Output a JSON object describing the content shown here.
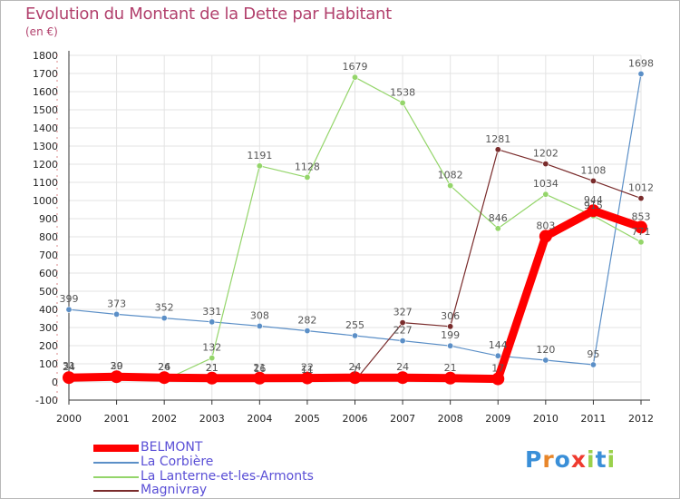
{
  "title": "Evolution du Montant de la Dette par Habitant",
  "subtitle": "(en €)",
  "logo_text": "Proxiti",
  "colors": {
    "title": "#b2416d",
    "legend_text": "#5a4fd6",
    "grid": "#e3e3e3",
    "axis": "#333333",
    "tick_text": "#222222",
    "value_label": "#555555"
  },
  "chart_data": {
    "type": "line",
    "x": [
      "2000",
      "2001",
      "2002",
      "2003",
      "2004",
      "2005",
      "2006",
      "2007",
      "2008",
      "2009",
      "2010",
      "2011",
      "2012"
    ],
    "ylim": [
      -100,
      1800
    ],
    "yticks": [
      -100,
      0,
      100,
      200,
      300,
      400,
      500,
      600,
      700,
      800,
      900,
      1000,
      1100,
      1200,
      1300,
      1400,
      1500,
      1600,
      1700,
      1800
    ],
    "grid": true,
    "legend_position": "bottom-left",
    "series": [
      {
        "name": "La Corbière",
        "color": "#5b8fc7",
        "values": [
          399,
          373,
          352,
          331,
          308,
          282,
          255,
          227,
          199,
          144,
          120,
          95,
          1698
        ],
        "labels": [
          "399",
          "373",
          "352",
          "331",
          "308",
          "282",
          "255",
          "227",
          "199",
          "144",
          "120",
          "95",
          "1698"
        ]
      },
      {
        "name": "La Lanterne-et-les-Armonts",
        "color": "#94d56a",
        "values": [
          10,
          10,
          10,
          132,
          1191,
          1128,
          1679,
          1538,
          1082,
          846,
          1034,
          915,
          771
        ],
        "labels": [
          "",
          "",
          "",
          "132",
          "1191",
          "1128",
          "1679",
          "1538",
          "1082",
          "846",
          "1034",
          "915",
          "771"
        ]
      },
      {
        "name": "Magnivray",
        "color": "#7a2c2c",
        "values": [
          31,
          30,
          26,
          21,
          16,
          11,
          7,
          327,
          306,
          1281,
          1202,
          1108,
          1012
        ],
        "labels": [
          "31",
          "30",
          "26",
          "21",
          "16",
          "11",
          "7",
          "327",
          "306",
          "1281",
          "1202",
          "1108",
          "1012"
        ]
      },
      {
        "name": "BELMONT",
        "color": "#ff0000",
        "values": [
          24,
          29,
          24,
          21,
          21,
          22,
          24,
          24,
          21,
          17,
          803,
          944,
          853
        ],
        "labels": [
          "24",
          "29",
          "24",
          "21",
          "21",
          "22",
          "24",
          "24",
          "21",
          "17",
          "803",
          "944",
          "853"
        ]
      }
    ],
    "legend_order": [
      "BELMONT",
      "La Corbière",
      "La Lanterne-et-les-Armonts",
      "Magnivray"
    ]
  }
}
